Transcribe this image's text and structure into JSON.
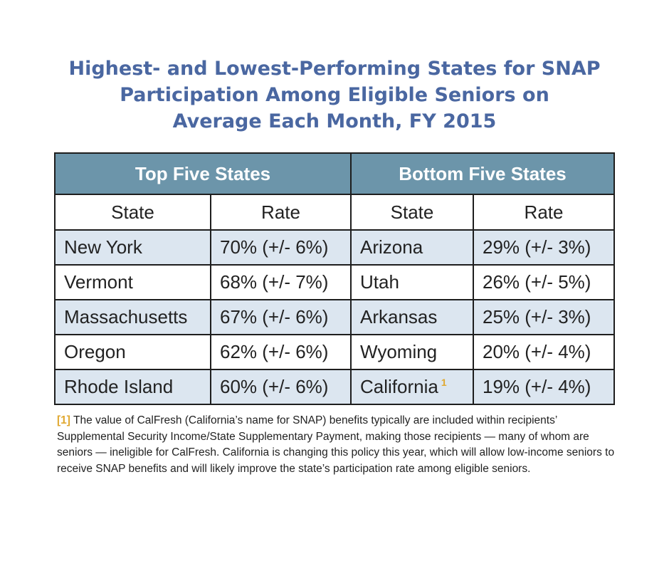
{
  "title_lines": [
    "Highest- and Lowest-Performing States for SNAP",
    "Participation Among Eligible Seniors on",
    "Average Each Month, FY 2015"
  ],
  "table": {
    "top_header": "Top Five States",
    "bottom_header": "Bottom Five States",
    "col_state": "State",
    "col_rate": "Rate",
    "rows": [
      {
        "top_state": "New York",
        "top_rate": "70% (+/- 6%)",
        "bottom_state": "Arizona",
        "bottom_rate": "29% (+/- 3%)",
        "bottom_mark": ""
      },
      {
        "top_state": "Vermont",
        "top_rate": "68% (+/- 7%)",
        "bottom_state": "Utah",
        "bottom_rate": "26% (+/- 5%)",
        "bottom_mark": ""
      },
      {
        "top_state": "Massachusetts",
        "top_rate": "67% (+/- 6%)",
        "bottom_state": "Arkansas",
        "bottom_rate": "25% (+/- 3%)",
        "bottom_mark": ""
      },
      {
        "top_state": "Oregon",
        "top_rate": "62% (+/- 6%)",
        "bottom_state": "Wyoming",
        "bottom_rate": "20% (+/- 4%)",
        "bottom_mark": ""
      },
      {
        "top_state": "Rhode Island",
        "top_rate": "60% (+/- 6%)",
        "bottom_state": "California",
        "bottom_rate": "19% (+/- 4%)",
        "bottom_mark": "1"
      }
    ]
  },
  "footnote": {
    "ref": "[1]",
    "text": " The value of CalFresh (California’s name for SNAP) benefits typically are included within recipients’ Supplemental Security Income/State Supplementary Payment, making those recipients — many of whom are seniors — ineligible for CalFresh. California is changing this policy this year, which will allow low-income seniors to receive SNAP benefits and will likely improve the state’s participation rate among eligible seniors."
  },
  "colors": {
    "title": "#4a67a1",
    "header_bg": "#6c95aa",
    "row_shade": "#dce6f0",
    "footnote_mark": "#e0a830"
  }
}
